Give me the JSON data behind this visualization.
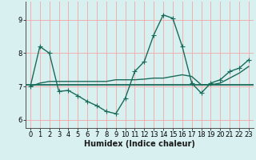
{
  "title": "",
  "xlabel": "Humidex (Indice chaleur)",
  "x": [
    0,
    1,
    2,
    3,
    4,
    5,
    6,
    7,
    8,
    9,
    10,
    11,
    12,
    13,
    14,
    15,
    16,
    17,
    18,
    19,
    20,
    21,
    22,
    23
  ],
  "y_main": [
    7.0,
    8.2,
    8.0,
    6.85,
    6.88,
    6.72,
    6.55,
    6.42,
    6.25,
    6.18,
    6.65,
    7.45,
    7.75,
    8.55,
    9.15,
    9.05,
    8.2,
    7.1,
    6.8,
    7.1,
    7.2,
    7.45,
    7.55,
    7.8
  ],
  "y_avg": 7.05,
  "y_trend": [
    7.0,
    7.1,
    7.15,
    7.15,
    7.15,
    7.15,
    7.15,
    7.15,
    7.15,
    7.2,
    7.2,
    7.2,
    7.22,
    7.25,
    7.25,
    7.3,
    7.35,
    7.3,
    7.05,
    7.05,
    7.1,
    7.25,
    7.4,
    7.6
  ],
  "line_color": "#1a6b5a",
  "bg_color": "#d8f0f0",
  "grid_color": "#f0b0b0",
  "axis_color": "#505050",
  "ylim": [
    5.75,
    9.55
  ],
  "xlim": [
    -0.5,
    23.5
  ],
  "yticks": [
    6,
    7,
    8,
    9
  ],
  "xticks": [
    0,
    1,
    2,
    3,
    4,
    5,
    6,
    7,
    8,
    9,
    10,
    11,
    12,
    13,
    14,
    15,
    16,
    17,
    18,
    19,
    20,
    21,
    22,
    23
  ],
  "marker_size": 4,
  "line_width": 1.0,
  "tick_fontsize": 6.0,
  "xlabel_fontsize": 7.0
}
